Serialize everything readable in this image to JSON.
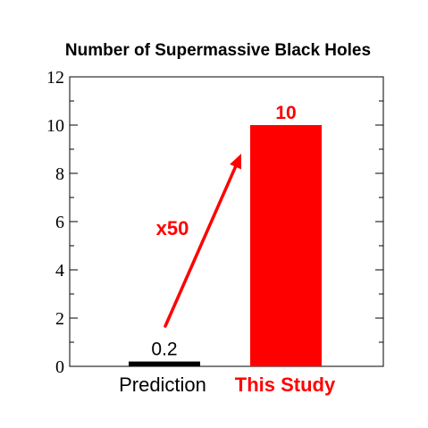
{
  "chart_data": {
    "type": "bar",
    "title": "Number of Supermassive Black Holes",
    "categories": [
      "Prediction",
      "This Study"
    ],
    "values": [
      0.2,
      10
    ],
    "value_labels": [
      "0.2",
      "10"
    ],
    "colors": [
      "#000000",
      "#ff0000"
    ],
    "ylim": [
      0,
      12
    ],
    "yticks": [
      "0",
      "2",
      "4",
      "6",
      "8",
      "10",
      "12"
    ],
    "ytick_values": [
      0,
      2,
      4,
      6,
      8,
      10,
      12
    ],
    "yminor_step": 1,
    "grid": false,
    "annotation": {
      "text": "x50",
      "color": "#ff0000"
    }
  }
}
